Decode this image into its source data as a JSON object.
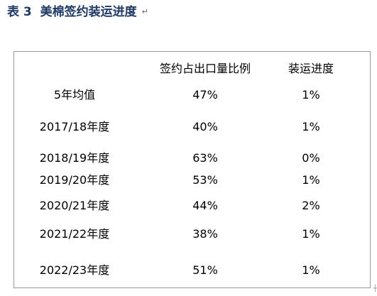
{
  "title": {
    "label": "表 3",
    "text": "美棉签约装运进度",
    "para_mark": "↵"
  },
  "table": {
    "headers": [
      "",
      "签约占出口量比例",
      "装运进度"
    ],
    "rows": [
      [
        "5年均值",
        "47%",
        "1%"
      ],
      [
        "2017/18年度",
        "40%",
        "1%"
      ],
      [
        "2018/19年度",
        "63%",
        "0%"
      ],
      [
        "2019/20年度",
        "53%",
        "1%"
      ],
      [
        "2020/21年度",
        "44%",
        "2%"
      ],
      [
        "2021/22年度",
        "38%",
        "1%"
      ],
      [
        "2022/23年度",
        "51%",
        "1%"
      ]
    ]
  }
}
